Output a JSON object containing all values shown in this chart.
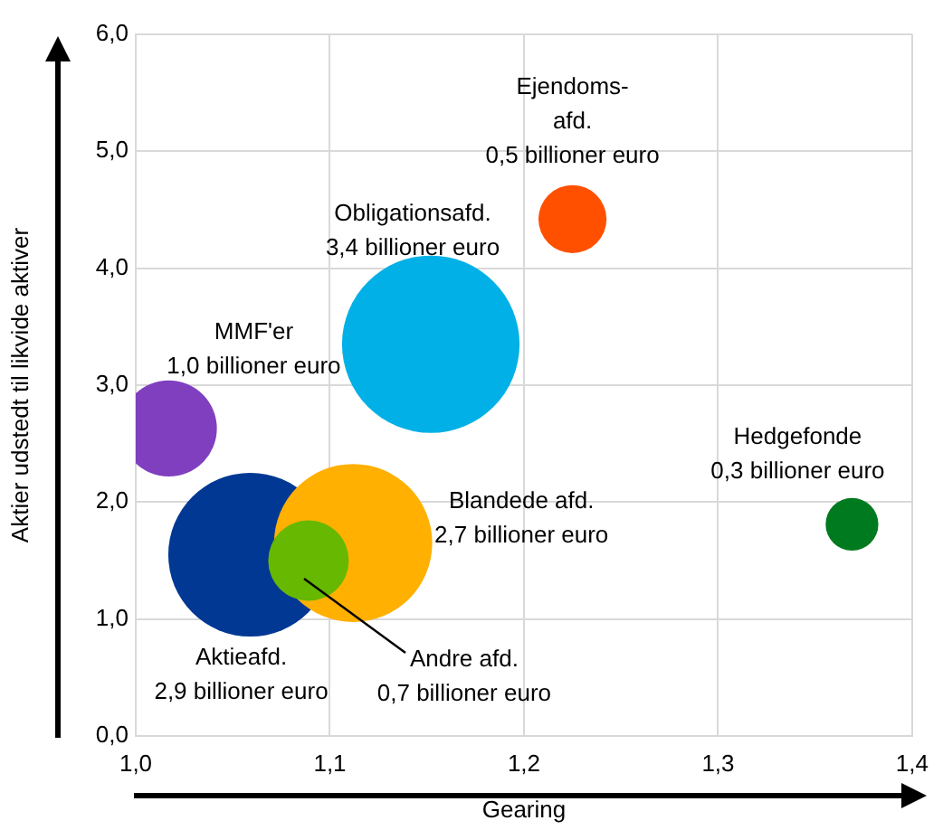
{
  "chart_data": {
    "type": "bubble",
    "xlabel": "Gearing",
    "ylabel": "Aktier udstedt til likvide aktiver",
    "xlim": [
      1.0,
      1.4
    ],
    "xticks": [
      {
        "value": 1.0,
        "label": "1,0"
      },
      {
        "value": 1.1,
        "label": "1,1"
      },
      {
        "value": 1.2,
        "label": "1,2"
      },
      {
        "value": 1.3,
        "label": "1,3"
      },
      {
        "value": 1.4,
        "label": "1,4"
      }
    ],
    "ylim": [
      0,
      6
    ],
    "yticks": [
      {
        "value": 0,
        "label": "0,0"
      },
      {
        "value": 1,
        "label": "1,0"
      },
      {
        "value": 2,
        "label": "2,0"
      },
      {
        "value": 3,
        "label": "3,0"
      },
      {
        "value": 4,
        "label": "4,0"
      },
      {
        "value": 5,
        "label": "5,0"
      },
      {
        "value": 6,
        "label": "6,0"
      }
    ],
    "grid": true,
    "legend": false,
    "series": [
      {
        "name": "MMF'er",
        "color": "#7f3fbf",
        "x": [
          1.017
        ],
        "values": [
          2.63
        ],
        "sizes": [
          1.0
        ],
        "value_labels": [
          "1,0 billioner euro"
        ]
      },
      {
        "name": "Obligationsafd.",
        "color": "#00b0e6",
        "x": [
          1.152
        ],
        "values": [
          3.35
        ],
        "sizes": [
          3.4
        ],
        "value_labels": [
          "3,4 billioner euro"
        ]
      },
      {
        "name": "Ejendoms-\nafd.",
        "color": "#ff5000",
        "x": [
          1.225
        ],
        "values": [
          4.42
        ],
        "sizes": [
          0.5
        ],
        "value_labels": [
          "0,5 billioner euro"
        ]
      },
      {
        "name": "Aktieafd.",
        "color": "#003893",
        "x": [
          1.059
        ],
        "values": [
          1.55
        ],
        "sizes": [
          2.9
        ],
        "value_labels": [
          "2,9 billioner euro"
        ]
      },
      {
        "name": "Blandede afd.",
        "color": "#ffb000",
        "x": [
          1.112
        ],
        "values": [
          1.65
        ],
        "sizes": [
          2.7
        ],
        "value_labels": [
          "2,7 billioner euro"
        ]
      },
      {
        "name": "Andre afd.",
        "color": "#66b800",
        "x": [
          1.089
        ],
        "values": [
          1.5
        ],
        "sizes": [
          0.7
        ],
        "value_labels": [
          "0,7 billioner euro"
        ]
      },
      {
        "name": "Hedgefonde",
        "color": "#007a1e",
        "x": [
          1.369
        ],
        "values": [
          1.81
        ],
        "sizes": [
          0.3
        ],
        "value_labels": [
          "0,3 billioner euro"
        ]
      }
    ]
  }
}
